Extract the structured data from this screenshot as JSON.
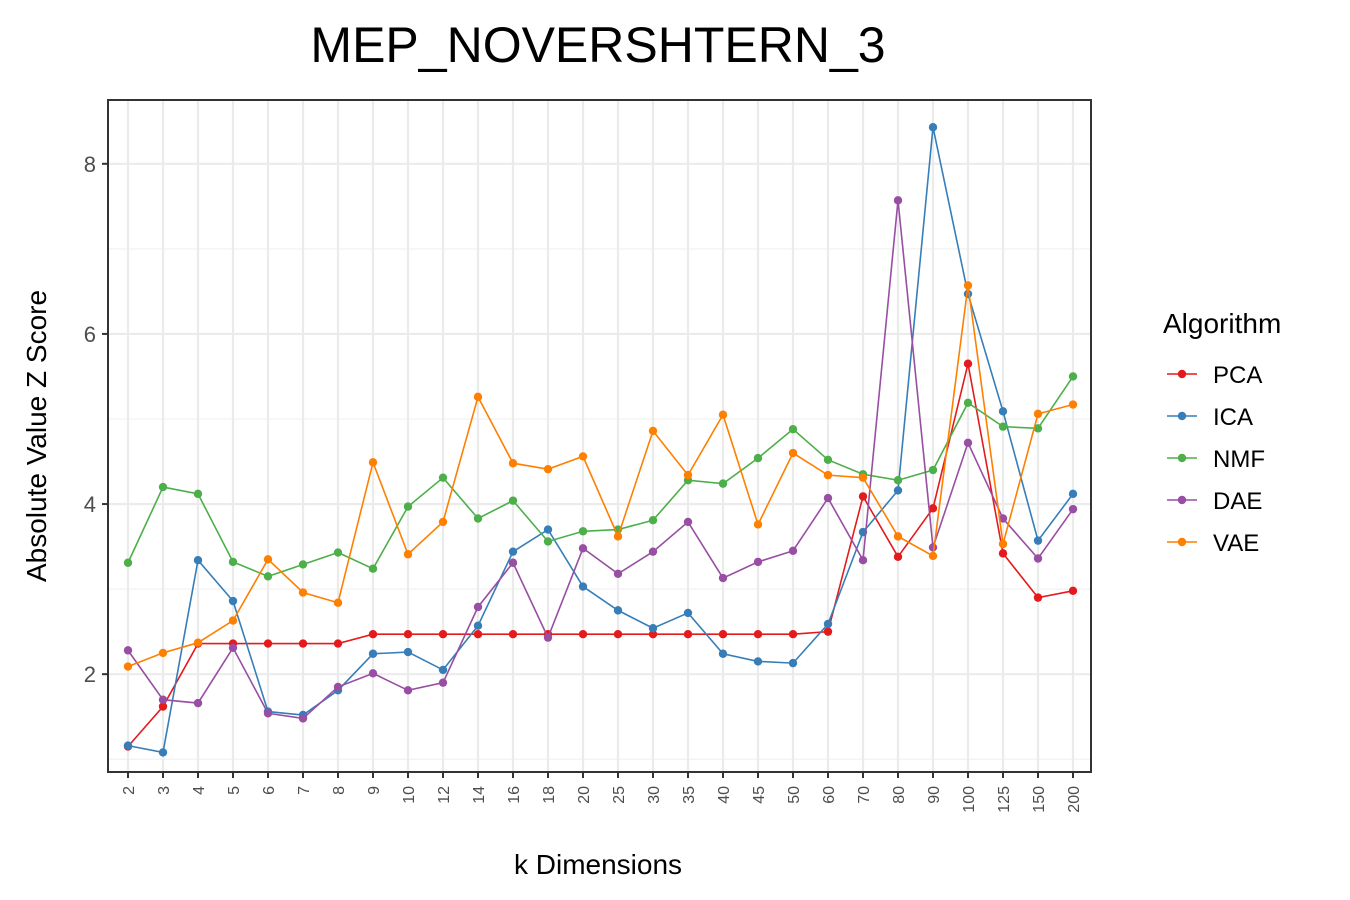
{
  "chart_data": {
    "type": "line",
    "title": "MEP_NOVERSHTERN_3",
    "xlabel": "k Dimensions",
    "ylabel": "Absolute Value Z Score",
    "categories": [
      "2",
      "3",
      "4",
      "5",
      "6",
      "7",
      "8",
      "9",
      "10",
      "12",
      "14",
      "16",
      "18",
      "20",
      "25",
      "30",
      "35",
      "40",
      "45",
      "50",
      "60",
      "70",
      "80",
      "90",
      "100",
      "125",
      "150",
      "200"
    ],
    "ylim": [
      0.85,
      8.75
    ],
    "yticks": [
      2,
      4,
      6,
      8
    ],
    "grid": true,
    "legend": {
      "title": "Algorithm",
      "position": "right"
    },
    "series": [
      {
        "name": "PCA",
        "color": "#e41a1c",
        "values": [
          1.15,
          1.62,
          2.36,
          2.36,
          2.36,
          2.36,
          2.36,
          2.47,
          2.47,
          2.47,
          2.47,
          2.47,
          2.47,
          2.47,
          2.47,
          2.47,
          2.47,
          2.47,
          2.47,
          2.47,
          2.5,
          4.09,
          3.38,
          3.95,
          5.65,
          3.42,
          2.9,
          2.98
        ]
      },
      {
        "name": "ICA",
        "color": "#377eb8",
        "values": [
          1.16,
          1.08,
          3.34,
          2.86,
          1.56,
          1.52,
          1.81,
          2.24,
          2.26,
          2.05,
          2.57,
          3.44,
          3.7,
          3.03,
          2.75,
          2.54,
          2.72,
          2.24,
          2.15,
          2.13,
          2.59,
          3.67,
          4.16,
          8.43,
          6.47,
          5.09,
          3.57,
          4.12
        ]
      },
      {
        "name": "NMF",
        "color": "#4daf4a",
        "values": [
          3.31,
          4.2,
          4.12,
          3.32,
          3.15,
          3.29,
          3.43,
          3.24,
          3.97,
          4.31,
          3.83,
          4.04,
          3.56,
          3.68,
          3.7,
          3.81,
          4.28,
          4.24,
          4.54,
          4.88,
          4.52,
          4.35,
          4.28,
          4.4,
          5.19,
          4.91,
          4.89,
          5.5
        ]
      },
      {
        "name": "DAE",
        "color": "#984ea3",
        "values": [
          2.28,
          1.7,
          1.66,
          2.31,
          1.54,
          1.48,
          1.85,
          2.01,
          1.81,
          1.9,
          2.79,
          3.31,
          2.43,
          3.48,
          3.18,
          3.44,
          3.79,
          3.13,
          3.32,
          3.45,
          4.07,
          3.34,
          7.57,
          3.49,
          4.72,
          3.83,
          3.36,
          3.94
        ]
      },
      {
        "name": "VAE",
        "color": "#ff7f00",
        "values": [
          2.09,
          2.25,
          2.37,
          2.63,
          3.35,
          2.96,
          2.84,
          4.49,
          3.41,
          3.79,
          5.26,
          4.48,
          4.41,
          4.56,
          3.62,
          4.86,
          4.34,
          5.05,
          3.76,
          4.6,
          4.34,
          4.31,
          3.62,
          3.39,
          6.57,
          3.53,
          5.06,
          5.17
        ]
      }
    ]
  }
}
